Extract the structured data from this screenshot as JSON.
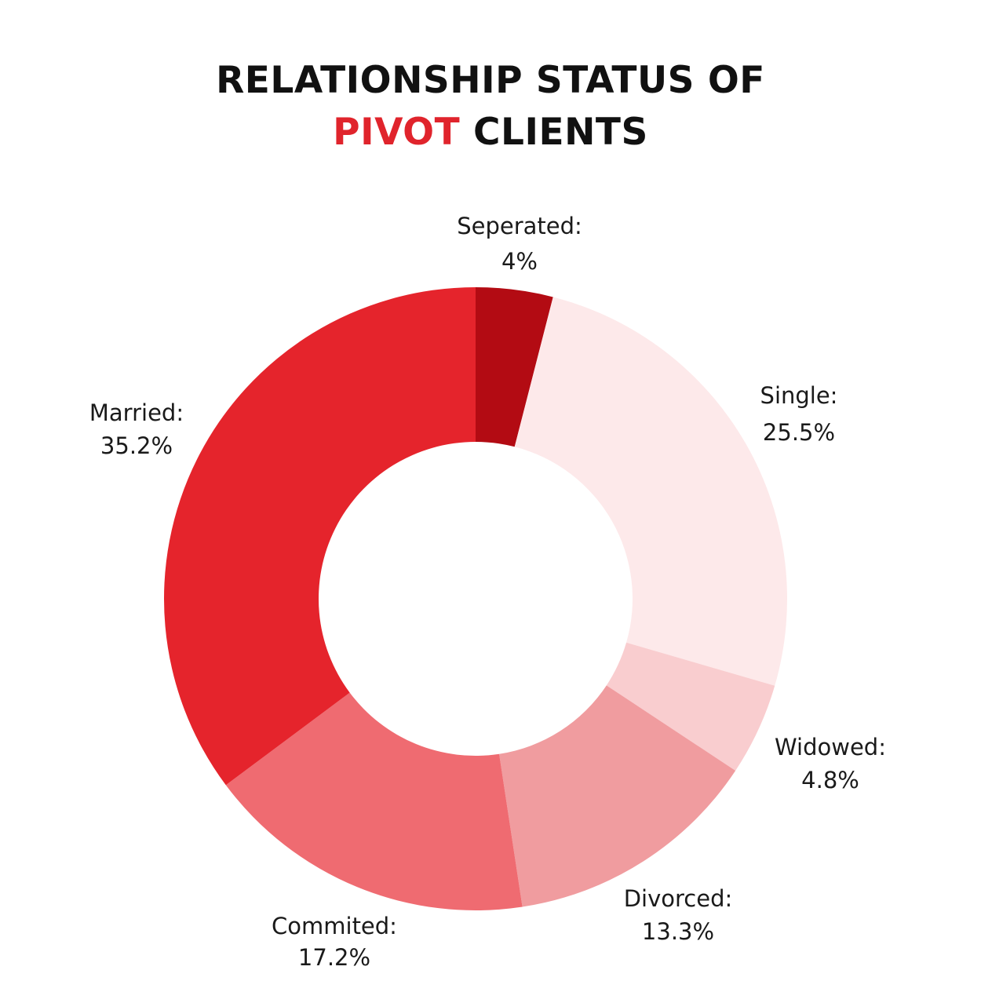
{
  "title": {
    "line1": "RELATIONSHIP STATUS OF",
    "line2_accent": "PIVOT",
    "line2_rest": "CLIENTS"
  },
  "colors": {
    "accent": "#e0242c"
  },
  "chart_data": {
    "type": "pie",
    "style": "donut",
    "title": "RELATIONSHIP STATUS OF PIVOT CLIENTS",
    "slices": [
      {
        "label": "Seperated:",
        "value": 4,
        "display": "4%",
        "color": "#b30b13"
      },
      {
        "label": "Single:",
        "value": 25.5,
        "display": "25.5%",
        "color": "#fde9ea"
      },
      {
        "label": "Widowed:",
        "value": 4.8,
        "display": "4.8%",
        "color": "#f9cdcf"
      },
      {
        "label": "Divorced:",
        "value": 13.3,
        "display": "13.3%",
        "color": "#f09c9f"
      },
      {
        "label": "Commited:",
        "value": 17.2,
        "display": "17.2%",
        "color": "#ef6b71"
      },
      {
        "label": "Married:",
        "value": 35.2,
        "display": "35.2%",
        "color": "#e5242c"
      }
    ],
    "start": "top",
    "direction": "clockwise",
    "legend": "none"
  }
}
